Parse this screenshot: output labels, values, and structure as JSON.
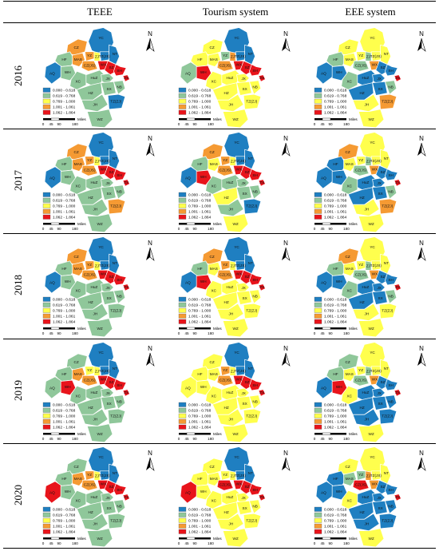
{
  "columns": [
    "TEEE",
    "Tourism system",
    "EEE system"
  ],
  "legend": {
    "classes": [
      "0.000 - 0.618",
      "0.619 - 0.768",
      "0.769 - 1.000",
      "1.001 - 1.061",
      "1.062 - 1.864"
    ],
    "colors": [
      "#1f7fc1",
      "#8fc79a",
      "#ffff4d",
      "#f59a33",
      "#e8141b"
    ]
  },
  "scale_bar": {
    "ticks": [
      "0",
      "45",
      "90",
      "180"
    ],
    "unit": "Miles"
  },
  "north_label": "N",
  "region_labels": {
    "YC": "YC",
    "CZ": "CZ",
    "TZ(JS)": "TZ(JS)",
    "NT": "NT",
    "HF": "HF",
    "YZ": "YZ",
    "ZJ": "ZJ",
    "CZ(JS)": "CZ(JS)",
    "SZ": "SZ",
    "MAS": "MAS",
    "WX": "WX",
    "WH": "WH",
    "SH": "SH",
    "AQ": "AQ",
    "XC": "XC",
    "HuZ": "HuZ",
    "JX": "JX",
    "HZ": "HZ",
    "SX": "SX",
    "NB": "NB",
    "ZS": "ZS",
    "JH": "JH",
    "TZ(ZJ)": "TZ(ZJ)",
    "WZ": "WZ"
  },
  "rows": [
    {
      "year": "2016",
      "teee": {
        "YC": 0,
        "CZ": 3,
        "HF": 1,
        "AQ": 0,
        "WH": 1,
        "MAS": 3,
        "XC": 1,
        "HuZ": 1,
        "JX": 1,
        "HZ": 1,
        "SX": 1,
        "NB": 1,
        "JH": 1,
        "TZ(ZJ)": 0,
        "WZ": 1,
        "NT": 0,
        "TZ(JS)": 0,
        "YZ": 3,
        "ZJ": 2,
        "CZ(JS)": 3,
        "SZ": 4,
        "WX": 4,
        "SH": 4,
        "ZS": 4
      },
      "tourism": {
        "YC": 0,
        "CZ": 2,
        "HF": 2,
        "AQ": 1,
        "WH": 4,
        "MAS": 2,
        "XC": 2,
        "HuZ": 2,
        "JX": 2,
        "HZ": 2,
        "SX": 2,
        "NB": 2,
        "JH": 2,
        "TZ(ZJ)": 2,
        "WZ": 2,
        "NT": 0,
        "TZ(JS)": 0,
        "YZ": 1,
        "ZJ": 3,
        "CZ(JS)": 3,
        "SZ": 4,
        "WX": 4,
        "SH": 4,
        "ZS": 4
      },
      "eee": {
        "YC": 2,
        "CZ": 2,
        "HF": 1,
        "AQ": 0,
        "WH": 0,
        "MAS": 2,
        "XC": 1,
        "HuZ": 0,
        "JX": 0,
        "HZ": 0,
        "SX": 0,
        "NB": 1,
        "JH": 2,
        "TZ(ZJ)": 3,
        "WZ": 2,
        "NT": 2,
        "TZ(JS)": 2,
        "YZ": 2,
        "ZJ": 1,
        "CZ(JS)": 1,
        "SZ": 0,
        "WX": 3,
        "SH": 0,
        "ZS": 4
      }
    },
    {
      "year": "2017",
      "teee": {
        "YC": 0,
        "CZ": 3,
        "HF": 1,
        "AQ": 0,
        "WH": 1,
        "MAS": 3,
        "XC": 1,
        "HuZ": 1,
        "JX": 1,
        "HZ": 1,
        "SX": 1,
        "NB": 1,
        "JH": 1,
        "TZ(ZJ)": 3,
        "WZ": 1,
        "NT": 0,
        "TZ(JS)": 0,
        "YZ": 3,
        "ZJ": 2,
        "CZ(JS)": 3,
        "SZ": 4,
        "WX": 4,
        "SH": 4,
        "ZS": 4
      },
      "tourism": {
        "YC": 0,
        "CZ": 3,
        "HF": 1,
        "AQ": 0,
        "WH": 4,
        "MAS": 2,
        "XC": 1,
        "HuZ": 1,
        "JX": 1,
        "HZ": 2,
        "SX": 1,
        "NB": 1,
        "JH": 1,
        "TZ(ZJ)": 0,
        "WZ": 2,
        "NT": 0,
        "TZ(JS)": 0,
        "YZ": 3,
        "ZJ": 2,
        "CZ(JS)": 3,
        "SZ": 4,
        "WX": 4,
        "SH": 4,
        "ZS": 4
      },
      "eee": {
        "YC": 2,
        "CZ": 3,
        "HF": 0,
        "AQ": 0,
        "WH": 0,
        "MAS": 2,
        "XC": 1,
        "HuZ": 0,
        "JX": 0,
        "HZ": 0,
        "SX": 0,
        "NB": 1,
        "JH": 2,
        "TZ(ZJ)": 3,
        "WZ": 2,
        "NT": 2,
        "TZ(JS)": 2,
        "YZ": 2,
        "ZJ": 1,
        "CZ(JS)": 1,
        "SZ": 0,
        "WX": 3,
        "SH": 0,
        "ZS": 4
      }
    },
    {
      "year": "2018",
      "teee": {
        "YC": 0,
        "CZ": 3,
        "HF": 1,
        "AQ": 0,
        "WH": 1,
        "MAS": 3,
        "XC": 1,
        "HuZ": 1,
        "JX": 1,
        "HZ": 1,
        "SX": 1,
        "NB": 1,
        "JH": 1,
        "TZ(ZJ)": 1,
        "WZ": 1,
        "NT": 0,
        "TZ(JS)": 0,
        "YZ": 3,
        "ZJ": 2,
        "CZ(JS)": 3,
        "SZ": 4,
        "WX": 4,
        "SH": 4,
        "ZS": 4
      },
      "tourism": {
        "YC": 0,
        "CZ": 3,
        "HF": 1,
        "AQ": 0,
        "WH": 4,
        "MAS": 2,
        "XC": 2,
        "HuZ": 2,
        "JX": 2,
        "HZ": 2,
        "SX": 2,
        "NB": 2,
        "JH": 2,
        "TZ(ZJ)": 2,
        "WZ": 2,
        "NT": 0,
        "TZ(JS)": 0,
        "YZ": 3,
        "ZJ": 2,
        "CZ(JS)": 3,
        "SZ": 4,
        "WX": 4,
        "SH": 4,
        "ZS": 4
      },
      "eee": {
        "YC": 2,
        "CZ": 3,
        "HF": 1,
        "AQ": 0,
        "WH": 0,
        "MAS": 2,
        "XC": 1,
        "HuZ": 0,
        "JX": 0,
        "HZ": 0,
        "SX": 0,
        "NB": 1,
        "JH": 2,
        "TZ(ZJ)": 2,
        "WZ": 2,
        "NT": 2,
        "TZ(JS)": 2,
        "YZ": 2,
        "ZJ": 1,
        "CZ(JS)": 1,
        "SZ": 0,
        "WX": 3,
        "SH": 0,
        "ZS": 4
      }
    },
    {
      "year": "2019",
      "teee": {
        "YC": 0,
        "CZ": 1,
        "HF": 1,
        "AQ": 1,
        "WH": 4,
        "MAS": 3,
        "XC": 1,
        "HuZ": 1,
        "JX": 1,
        "HZ": 1,
        "SX": 1,
        "NB": 1,
        "JH": 1,
        "TZ(ZJ)": 1,
        "WZ": 1,
        "NT": 0,
        "TZ(JS)": 0,
        "YZ": 2,
        "ZJ": 2,
        "CZ(JS)": 3,
        "SZ": 4,
        "WX": 4,
        "SH": 4,
        "ZS": 4
      },
      "tourism": {
        "YC": 0,
        "CZ": 2,
        "HF": 2,
        "AQ": 2,
        "WH": 2,
        "MAS": 2,
        "XC": 2,
        "HuZ": 2,
        "JX": 2,
        "HZ": 2,
        "SX": 2,
        "NB": 2,
        "JH": 2,
        "TZ(ZJ)": 2,
        "WZ": 2,
        "NT": 0,
        "TZ(JS)": 0,
        "YZ": 3,
        "ZJ": 2,
        "CZ(JS)": 3,
        "SZ": 4,
        "WX": 4,
        "SH": 4,
        "ZS": 4
      },
      "eee": {
        "YC": 2,
        "CZ": 1,
        "HF": 1,
        "AQ": 0,
        "WH": 4,
        "MAS": 2,
        "XC": 2,
        "HuZ": 0,
        "JX": 0,
        "HZ": 0,
        "SX": 0,
        "NB": 0,
        "JH": 0,
        "TZ(ZJ)": 0,
        "WZ": 2,
        "NT": 2,
        "TZ(JS)": 2,
        "YZ": 2,
        "ZJ": 1,
        "CZ(JS)": 1,
        "SZ": 0,
        "WX": 3,
        "SH": 0,
        "ZS": 4
      }
    },
    {
      "year": "2020",
      "teee": {
        "YC": 0,
        "CZ": 1,
        "HF": 1,
        "AQ": 4,
        "WH": 1,
        "MAS": 3,
        "XC": 1,
        "HuZ": 1,
        "JX": 1,
        "HZ": 1,
        "SX": 1,
        "NB": 1,
        "JH": 1,
        "TZ(ZJ)": 1,
        "WZ": 1,
        "NT": 0,
        "TZ(JS)": 0,
        "YZ": 3,
        "ZJ": 2,
        "CZ(JS)": 3,
        "SZ": 4,
        "WX": 4,
        "SH": 4,
        "ZS": 4
      },
      "tourism": {
        "YC": 0,
        "CZ": 2,
        "HF": 2,
        "AQ": 4,
        "WH": 2,
        "MAS": 2,
        "XC": 2,
        "HuZ": 2,
        "JX": 2,
        "HZ": 2,
        "SX": 2,
        "NB": 2,
        "JH": 2,
        "TZ(ZJ)": 2,
        "WZ": 2,
        "NT": 0,
        "TZ(JS)": 0,
        "YZ": 2,
        "ZJ": 2,
        "CZ(JS)": 4,
        "SZ": 4,
        "WX": 4,
        "SH": 4,
        "ZS": 4
      },
      "eee": {
        "YC": 2,
        "CZ": 2,
        "HF": 0,
        "AQ": 0,
        "WH": 0,
        "MAS": 1,
        "XC": 2,
        "HuZ": 0,
        "JX": 0,
        "HZ": 0,
        "SX": 0,
        "NB": 0,
        "JH": 0,
        "TZ(ZJ)": 0,
        "WZ": 2,
        "NT": 2,
        "TZ(JS)": 2,
        "YZ": 1,
        "ZJ": 3,
        "CZ(JS)": 4,
        "SZ": 0,
        "WX": 3,
        "SH": 0,
        "ZS": 4
      }
    }
  ]
}
